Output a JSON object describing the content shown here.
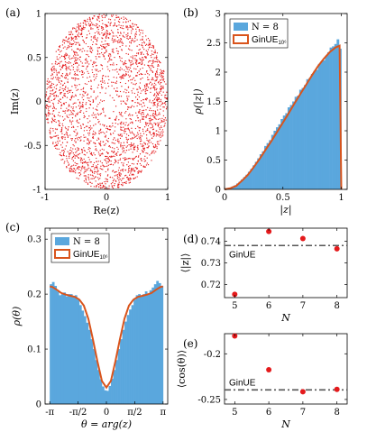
{
  "chart_data": [
    {
      "panel": "(a)",
      "type": "scatter",
      "xlabel": "Re(z)",
      "ylabel": "Im(z)",
      "xlim": [
        -1,
        1
      ],
      "ylim": [
        -1,
        1
      ],
      "xticks": [
        "-1",
        "0",
        "1"
      ],
      "yticks": [
        "-1",
        "-0.5",
        "0",
        "0.5",
        "1"
      ],
      "color": "#e41a1c",
      "description_values": {
        "points": "eigenvalues uniformly filling disk of radius 1, denser near edge"
      }
    },
    {
      "panel": "(b)",
      "type": "bar",
      "xlabel": "|z|",
      "ylabel": "ρ(|z|)",
      "xlim": [
        0,
        1.05
      ],
      "ylim": [
        0,
        3
      ],
      "xticks": [
        "0",
        "0.5",
        "1"
      ],
      "yticks": [
        "0",
        "0.5",
        "1",
        "1.5",
        "2",
        "2.5",
        "3"
      ],
      "legend": [
        "N = 8",
        "GinUE"
      ],
      "legend_sup": "10⁶",
      "bar_color": "#5aa7dd",
      "line_color": "#d9541c",
      "bin_width": 0.02,
      "hist_centers": [
        0.01,
        0.03,
        0.05,
        0.07,
        0.09,
        0.11,
        0.13,
        0.15,
        0.17,
        0.19,
        0.21,
        0.23,
        0.25,
        0.27,
        0.29,
        0.31,
        0.33,
        0.35,
        0.37,
        0.39,
        0.41,
        0.43,
        0.45,
        0.47,
        0.49,
        0.51,
        0.53,
        0.55,
        0.57,
        0.59,
        0.61,
        0.63,
        0.65,
        0.67,
        0.69,
        0.71,
        0.73,
        0.75,
        0.77,
        0.79,
        0.81,
        0.83,
        0.85,
        0.87,
        0.89,
        0.91,
        0.93,
        0.95,
        0.97,
        0.99
      ],
      "hist_values": [
        0.01,
        0.02,
        0.03,
        0.05,
        0.07,
        0.1,
        0.13,
        0.17,
        0.21,
        0.25,
        0.3,
        0.35,
        0.41,
        0.47,
        0.53,
        0.6,
        0.65,
        0.74,
        0.79,
        0.84,
        0.93,
        1.0,
        1.06,
        1.11,
        1.2,
        1.26,
        1.3,
        1.4,
        1.44,
        1.5,
        1.58,
        1.6,
        1.7,
        1.73,
        1.78,
        1.88,
        1.9,
        1.97,
        2.02,
        2.04,
        2.14,
        2.18,
        2.2,
        2.28,
        2.34,
        2.42,
        2.44,
        2.48,
        2.56,
        2.4
      ],
      "curve_x": [
        0,
        0.05,
        0.1,
        0.15,
        0.2,
        0.25,
        0.3,
        0.35,
        0.4,
        0.45,
        0.5,
        0.55,
        0.6,
        0.65,
        0.7,
        0.75,
        0.8,
        0.85,
        0.9,
        0.95,
        0.985,
        1.0
      ],
      "curve_y": [
        0,
        0.02,
        0.06,
        0.15,
        0.25,
        0.38,
        0.52,
        0.67,
        0.82,
        0.98,
        1.14,
        1.3,
        1.47,
        1.63,
        1.79,
        1.95,
        2.1,
        2.23,
        2.34,
        2.42,
        2.45,
        0
      ]
    },
    {
      "panel": "(c)",
      "type": "bar",
      "xlabel": "θ = arg(z)",
      "ylabel": "ρ(θ)",
      "xlim": [
        -3.4,
        3.4
      ],
      "ylim": [
        0,
        0.32
      ],
      "xticks": [
        "-π",
        "-π/2",
        "0",
        "π/2",
        "π"
      ],
      "yticks": [
        "0",
        "0.1",
        "0.2",
        "0.3"
      ],
      "legend": [
        "N = 8",
        "GinUE"
      ],
      "legend_sup": "10⁶",
      "bar_color": "#5aa7dd",
      "line_color": "#d9541c",
      "bin_width": 0.1257,
      "hist_centers": [
        -3.079,
        -2.953,
        -2.827,
        -2.702,
        -2.576,
        -2.45,
        -2.325,
        -2.199,
        -2.073,
        -1.948,
        -1.822,
        -1.696,
        -1.571,
        -1.445,
        -1.319,
        -1.194,
        -1.068,
        -0.942,
        -0.817,
        -0.691,
        -0.565,
        -0.44,
        -0.314,
        -0.188,
        -0.063,
        0.063,
        0.188,
        0.314,
        0.44,
        0.565,
        0.691,
        0.817,
        0.942,
        1.068,
        1.194,
        1.319,
        1.445,
        1.571,
        1.696,
        1.822,
        1.948,
        2.073,
        2.199,
        2.325,
        2.45,
        2.576,
        2.702,
        2.827,
        2.953,
        3.079
      ],
      "hist_values": [
        0.218,
        0.222,
        0.215,
        0.205,
        0.198,
        0.2,
        0.203,
        0.196,
        0.2,
        0.2,
        0.196,
        0.198,
        0.19,
        0.18,
        0.17,
        0.16,
        0.148,
        0.135,
        0.118,
        0.1,
        0.08,
        0.062,
        0.045,
        0.032,
        0.025,
        0.024,
        0.033,
        0.046,
        0.062,
        0.08,
        0.1,
        0.118,
        0.135,
        0.15,
        0.162,
        0.172,
        0.18,
        0.19,
        0.198,
        0.2,
        0.196,
        0.2,
        0.205,
        0.2,
        0.207,
        0.212,
        0.218,
        0.224,
        0.22,
        0.215
      ],
      "curve_x": [
        -3.1416,
        -3.0,
        -2.75,
        -2.5,
        -2.25,
        -2.0,
        -1.75,
        -1.5,
        -1.25,
        -1.0,
        -0.75,
        -0.5,
        -0.25,
        0,
        0.25,
        0.5,
        0.75,
        1.0,
        1.25,
        1.5,
        1.75,
        2.0,
        2.25,
        2.5,
        2.75,
        3.0,
        3.1416
      ],
      "curve_y": [
        0.214,
        0.213,
        0.208,
        0.202,
        0.199,
        0.197,
        0.195,
        0.19,
        0.179,
        0.155,
        0.118,
        0.078,
        0.042,
        0.03,
        0.042,
        0.078,
        0.118,
        0.155,
        0.179,
        0.19,
        0.195,
        0.197,
        0.199,
        0.202,
        0.208,
        0.213,
        0.214
      ]
    },
    {
      "panel": "(d)",
      "type": "scatter",
      "xlabel": "N",
      "ylabel": "⟨|z|⟩",
      "xlim": [
        4.7,
        8.3
      ],
      "ylim": [
        0.714,
        0.746
      ],
      "xticks": [
        "5",
        "6",
        "7",
        "8"
      ],
      "yticks": [
        "0.72",
        "0.73",
        "0.74"
      ],
      "x": [
        5,
        6,
        7,
        8
      ],
      "y": [
        0.7155,
        0.7445,
        0.7412,
        0.7365
      ],
      "reference": {
        "label": "GinUE",
        "value": 0.738
      },
      "point_color": "#e41a1c"
    },
    {
      "panel": "(e)",
      "type": "scatter",
      "xlabel": "N",
      "ylabel": "⟨cos(θ)⟩",
      "xlim": [
        4.7,
        8.3
      ],
      "ylim": [
        -0.255,
        -0.178
      ],
      "xticks": [
        "5",
        "6",
        "7",
        "8"
      ],
      "yticks": [
        "-0.25",
        "-0.2"
      ],
      "x": [
        5,
        6,
        7,
        8
      ],
      "y": [
        -0.1805,
        -0.2175,
        -0.2415,
        -0.239
      ],
      "reference": {
        "label": "GinUE",
        "value": -0.2395
      },
      "point_color": "#e41a1c"
    }
  ]
}
